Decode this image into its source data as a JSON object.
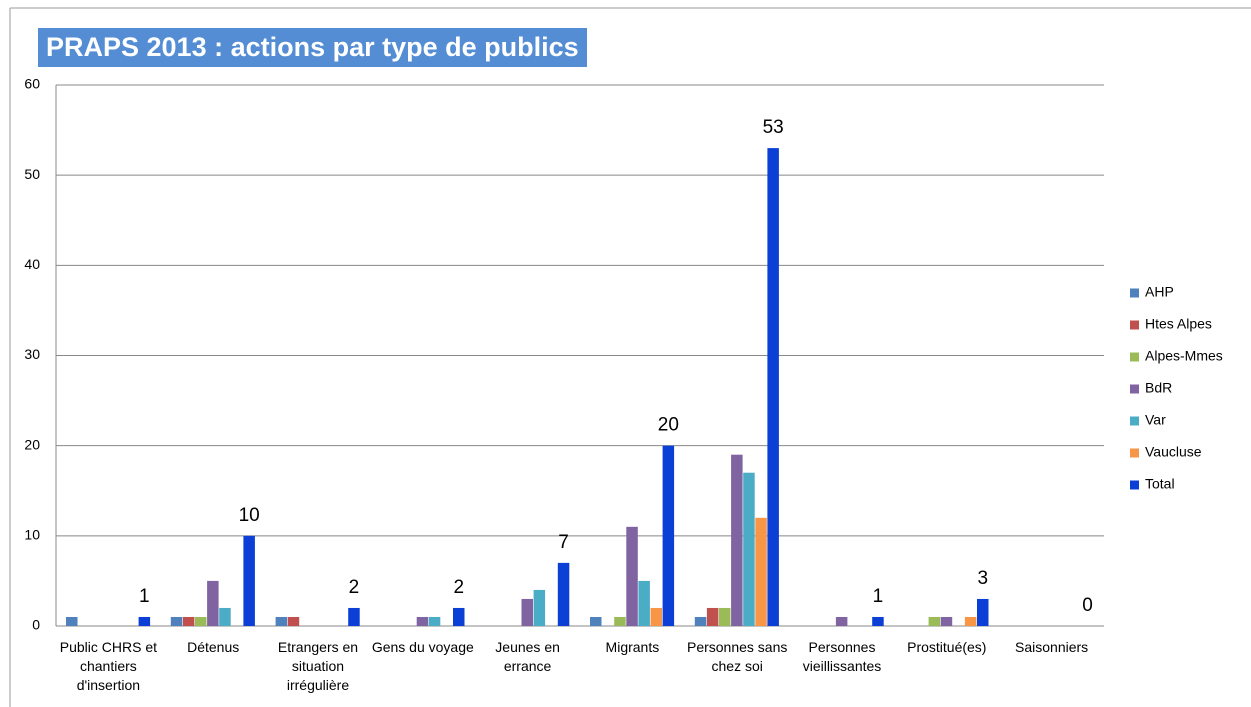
{
  "chart_data": {
    "type": "bar",
    "title": "PRAPS 2013 : actions par type de publics",
    "categories": [
      "Public CHRS et chantiers d'insertion",
      "Détenus",
      "Etrangers en situation irrégulière",
      "Gens du voyage",
      "Jeunes en errance",
      "Migrants",
      "Personnes sans chez soi",
      "Personnes vieillissantes",
      "Prostitué(es)",
      "Saisonniers"
    ],
    "series": [
      {
        "name": "AHP",
        "color": "#4f81bd",
        "values": [
          1,
          1,
          1,
          0,
          0,
          1,
          1,
          0,
          0,
          0
        ]
      },
      {
        "name": "Htes Alpes",
        "color": "#c0504d",
        "values": [
          0,
          1,
          1,
          0,
          0,
          0,
          2,
          0,
          0,
          0
        ]
      },
      {
        "name": "Alpes-Mmes",
        "color": "#9bbb59",
        "values": [
          0,
          1,
          0,
          0,
          0,
          1,
          2,
          0,
          1,
          0
        ]
      },
      {
        "name": "BdR",
        "color": "#8064a2",
        "values": [
          0,
          5,
          0,
          1,
          3,
          11,
          19,
          1,
          1,
          0
        ]
      },
      {
        "name": "Var",
        "color": "#4bacc6",
        "values": [
          0,
          2,
          0,
          1,
          4,
          5,
          17,
          0,
          0,
          0
        ]
      },
      {
        "name": "Vaucluse",
        "color": "#f79646",
        "values": [
          0,
          0,
          0,
          0,
          0,
          2,
          12,
          0,
          1,
          0
        ]
      },
      {
        "name": "Total",
        "color": "#0b3fd6",
        "values": [
          1,
          10,
          2,
          2,
          7,
          20,
          53,
          1,
          3,
          0
        ],
        "data_labels": true
      }
    ],
    "ylim": [
      0,
      60
    ],
    "yticks": [
      0,
      10,
      20,
      30,
      40,
      50,
      60
    ],
    "grid": true,
    "legend": "right"
  }
}
